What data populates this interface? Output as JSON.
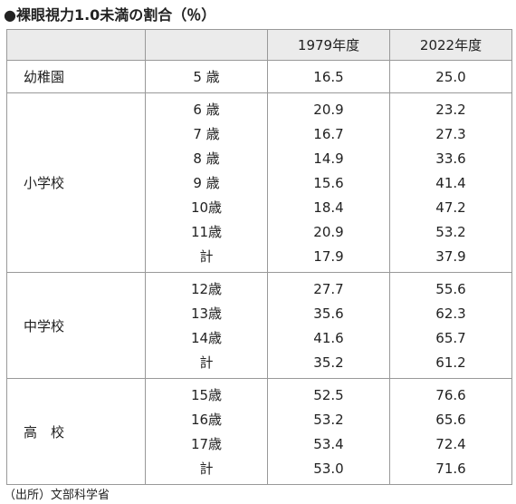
{
  "title": "●裸眼視力1.0未満の割合（％）",
  "table": {
    "columns": [
      "1979年度",
      "2022年度"
    ],
    "groups": [
      {
        "label": "幼稚園",
        "rows": [
          [
            "5 歳",
            "16.5",
            "25.0"
          ]
        ]
      },
      {
        "label": "小学校",
        "rows": [
          [
            "6 歳",
            "20.9",
            "23.2"
          ],
          [
            "7 歳",
            "16.7",
            "27.3"
          ],
          [
            "8 歳",
            "14.9",
            "33.6"
          ],
          [
            "9 歳",
            "15.6",
            "41.4"
          ],
          [
            "10歳",
            "18.4",
            "47.2"
          ],
          [
            "11歳",
            "20.9",
            "53.2"
          ],
          [
            "計",
            "17.9",
            "37.9"
          ]
        ]
      },
      {
        "label": "中学校",
        "rows": [
          [
            "12歳",
            "27.7",
            "55.6"
          ],
          [
            "13歳",
            "35.6",
            "62.3"
          ],
          [
            "14歳",
            "41.6",
            "65.7"
          ],
          [
            "計",
            "35.2",
            "61.2"
          ]
        ]
      },
      {
        "label": "高　校",
        "rows": [
          [
            "15歳",
            "52.5",
            "76.6"
          ],
          [
            "16歳",
            "53.2",
            "65.6"
          ],
          [
            "17歳",
            "53.4",
            "72.4"
          ],
          [
            "計",
            "53.0",
            "71.6"
          ]
        ]
      }
    ]
  },
  "source": "（出所）文部科学省"
}
